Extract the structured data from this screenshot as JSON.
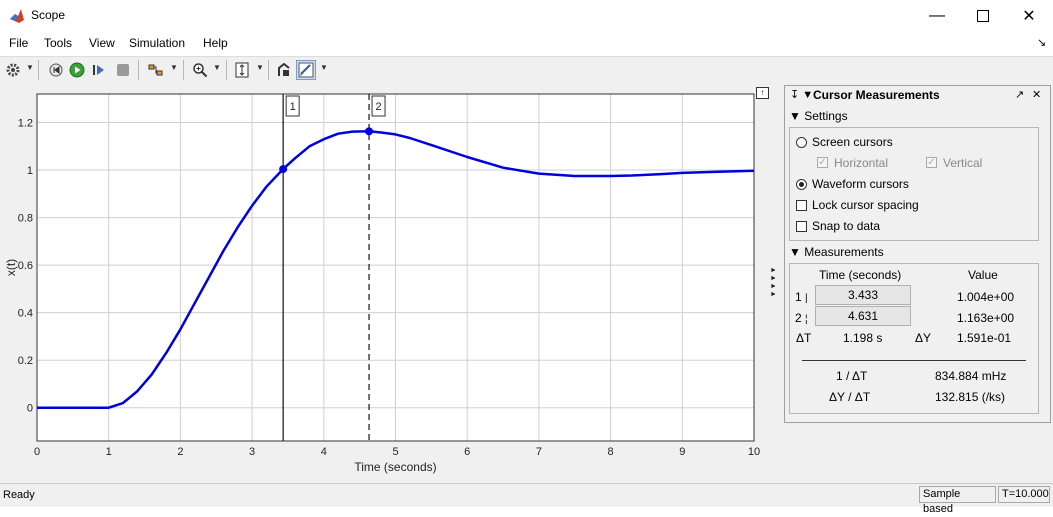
{
  "window": {
    "title": "Scope"
  },
  "menu": [
    "File",
    "Tools",
    "View",
    "Simulation",
    "Help"
  ],
  "toolbar": {
    "icons": [
      "gear-icon",
      "step-back-icon",
      "run-icon",
      "step-forward-icon",
      "stop-icon",
      "signal-selector-icon",
      "zoom-icon",
      "scale-axes-icon",
      "highlight-block-icon",
      "cursor-measurements-icon"
    ]
  },
  "colors": {
    "signal": "#0000dd",
    "accent_panel": "#f0f0f0"
  },
  "chart_data": {
    "type": "line",
    "xlabel": "Time (seconds)",
    "ylabel": "x(t)",
    "xlim": [
      0,
      10
    ],
    "ylim": [
      -0.14,
      1.32
    ],
    "grid": true,
    "xticks": [
      0,
      1,
      2,
      3,
      4,
      5,
      6,
      7,
      8,
      9,
      10
    ],
    "yticks": [
      0,
      0.2,
      0.4,
      0.6,
      0.8,
      1,
      1.2
    ],
    "ytick_labels": [
      "0",
      "0.2",
      "0.4",
      "0.6",
      "0.8",
      "1",
      "1.2"
    ],
    "series": [
      {
        "x": [
          0,
          1,
          1.2,
          1.4,
          1.6,
          1.8,
          2,
          2.2,
          2.4,
          2.6,
          2.8,
          3,
          3.2,
          3.433,
          3.6,
          3.8,
          4,
          4.2,
          4.4,
          4.631,
          4.8,
          5,
          5.2,
          5.5,
          6,
          6.5,
          7,
          7.5,
          8,
          8.3,
          8.7,
          9,
          9.5,
          10
        ],
        "y": [
          0,
          0,
          0.02,
          0.07,
          0.14,
          0.23,
          0.33,
          0.44,
          0.55,
          0.66,
          0.76,
          0.85,
          0.93,
          1.004,
          1.05,
          1.1,
          1.13,
          1.153,
          1.162,
          1.163,
          1.158,
          1.15,
          1.135,
          1.105,
          1.055,
          1.01,
          0.985,
          0.975,
          0.975,
          0.977,
          0.983,
          0.988,
          0.993,
          0.997
        ]
      }
    ],
    "cursors": [
      {
        "label": "1",
        "x": 3.433,
        "y": 1.004,
        "style": "solid"
      },
      {
        "label": "2",
        "x": 4.631,
        "y": 1.163,
        "style": "dashed"
      }
    ]
  },
  "panel": {
    "title": "Cursor Measurements",
    "settings": {
      "header": "Settings",
      "screen_cursors": "Screen cursors",
      "horizontal": "Horizontal",
      "vertical": "Vertical",
      "waveform_cursors": "Waveform cursors",
      "lock_spacing": "Lock cursor spacing",
      "snap_to_data": "Snap to data"
    },
    "measurements": {
      "header": "Measurements",
      "col_time": "Time (seconds)",
      "col_value": "Value",
      "rows": [
        {
          "label": "1",
          "time": "3.433",
          "value": "1.004e+00"
        },
        {
          "label": "2",
          "time": "4.631",
          "value": "1.163e+00"
        }
      ],
      "dt_label": "ΔT",
      "dt_value": "1.198 s",
      "dy_label": "ΔY",
      "dy_value": "1.591e-01",
      "inv_dt_label": "1 / ΔT",
      "inv_dt_value": "834.884 mHz",
      "dy_dt_label": "ΔY / ΔT",
      "dy_dt_value": "132.815 (/ks)"
    }
  },
  "status": {
    "left": "Ready",
    "mode": "Sample based",
    "time": "T=10.000"
  }
}
